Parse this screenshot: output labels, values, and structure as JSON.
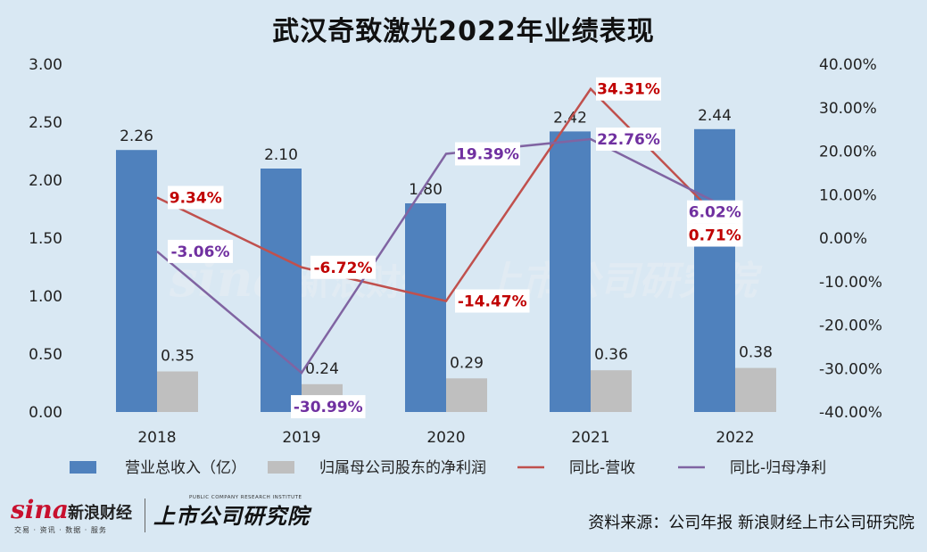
{
  "title": "武汉奇致激光2022年业绩表现",
  "source": "资料来源：公司年报 新浪财经上市公司研究院",
  "logos": {
    "sina_mark": "sina",
    "sina_name": "新浪财经",
    "sina_sub": "交易 · 资讯 · 数据 · 服务",
    "research_name": "上市公司研究院",
    "research_sub": "PUBLIC COMPANY RESEARCH INSTITUTE"
  },
  "colors": {
    "revenue_bar": "#4f81bd",
    "profit_bar": "#bfbfbf",
    "revenue_growth_line": "#c0504d",
    "profit_growth_line": "#8064a2",
    "revenue_growth_label": "#c00000",
    "profit_growth_label": "#7030a0",
    "background": "#d9e8f3"
  },
  "chart_data": {
    "type": "bar",
    "categories": [
      "2018",
      "2019",
      "2020",
      "2021",
      "2022"
    ],
    "y_left": {
      "ylim": [
        0,
        3
      ],
      "ticks": [
        "0.00",
        "0.50",
        "1.00",
        "1.50",
        "2.00",
        "2.50",
        "3.00"
      ]
    },
    "y_right": {
      "ylim": [
        -40,
        40
      ],
      "ticks": [
        "-40.00%",
        "-30.00%",
        "-20.00%",
        "-10.00%",
        "0.00%",
        "10.00%",
        "20.00%",
        "30.00%",
        "40.00%"
      ]
    },
    "series": [
      {
        "name": "营业总收入（亿）",
        "type": "bar",
        "axis": "left",
        "values": [
          2.26,
          2.1,
          1.8,
          2.42,
          2.44
        ],
        "labels": [
          "2.26",
          "2.10",
          "1.80",
          "2.42",
          "2.44"
        ]
      },
      {
        "name": "归属母公司股东的净利润",
        "type": "bar",
        "axis": "left",
        "values": [
          0.35,
          0.24,
          0.29,
          0.36,
          0.38
        ],
        "labels": [
          "0.35",
          "0.24",
          "0.29",
          "0.36",
          "0.38"
        ]
      },
      {
        "name": "同比-营收",
        "type": "line",
        "axis": "right",
        "values": [
          9.34,
          -6.72,
          -14.47,
          34.31,
          0.71
        ],
        "labels": [
          "9.34%",
          "-6.72%",
          "-14.47%",
          "34.31%",
          "0.71%"
        ]
      },
      {
        "name": "同比-归母净利",
        "type": "line",
        "axis": "right",
        "values": [
          -3.06,
          -30.99,
          19.39,
          22.76,
          6.02
        ],
        "labels": [
          "-3.06%",
          "-30.99%",
          "19.39%",
          "22.76%",
          "6.02%"
        ]
      }
    ],
    "legend": "bottom",
    "grid": false
  }
}
